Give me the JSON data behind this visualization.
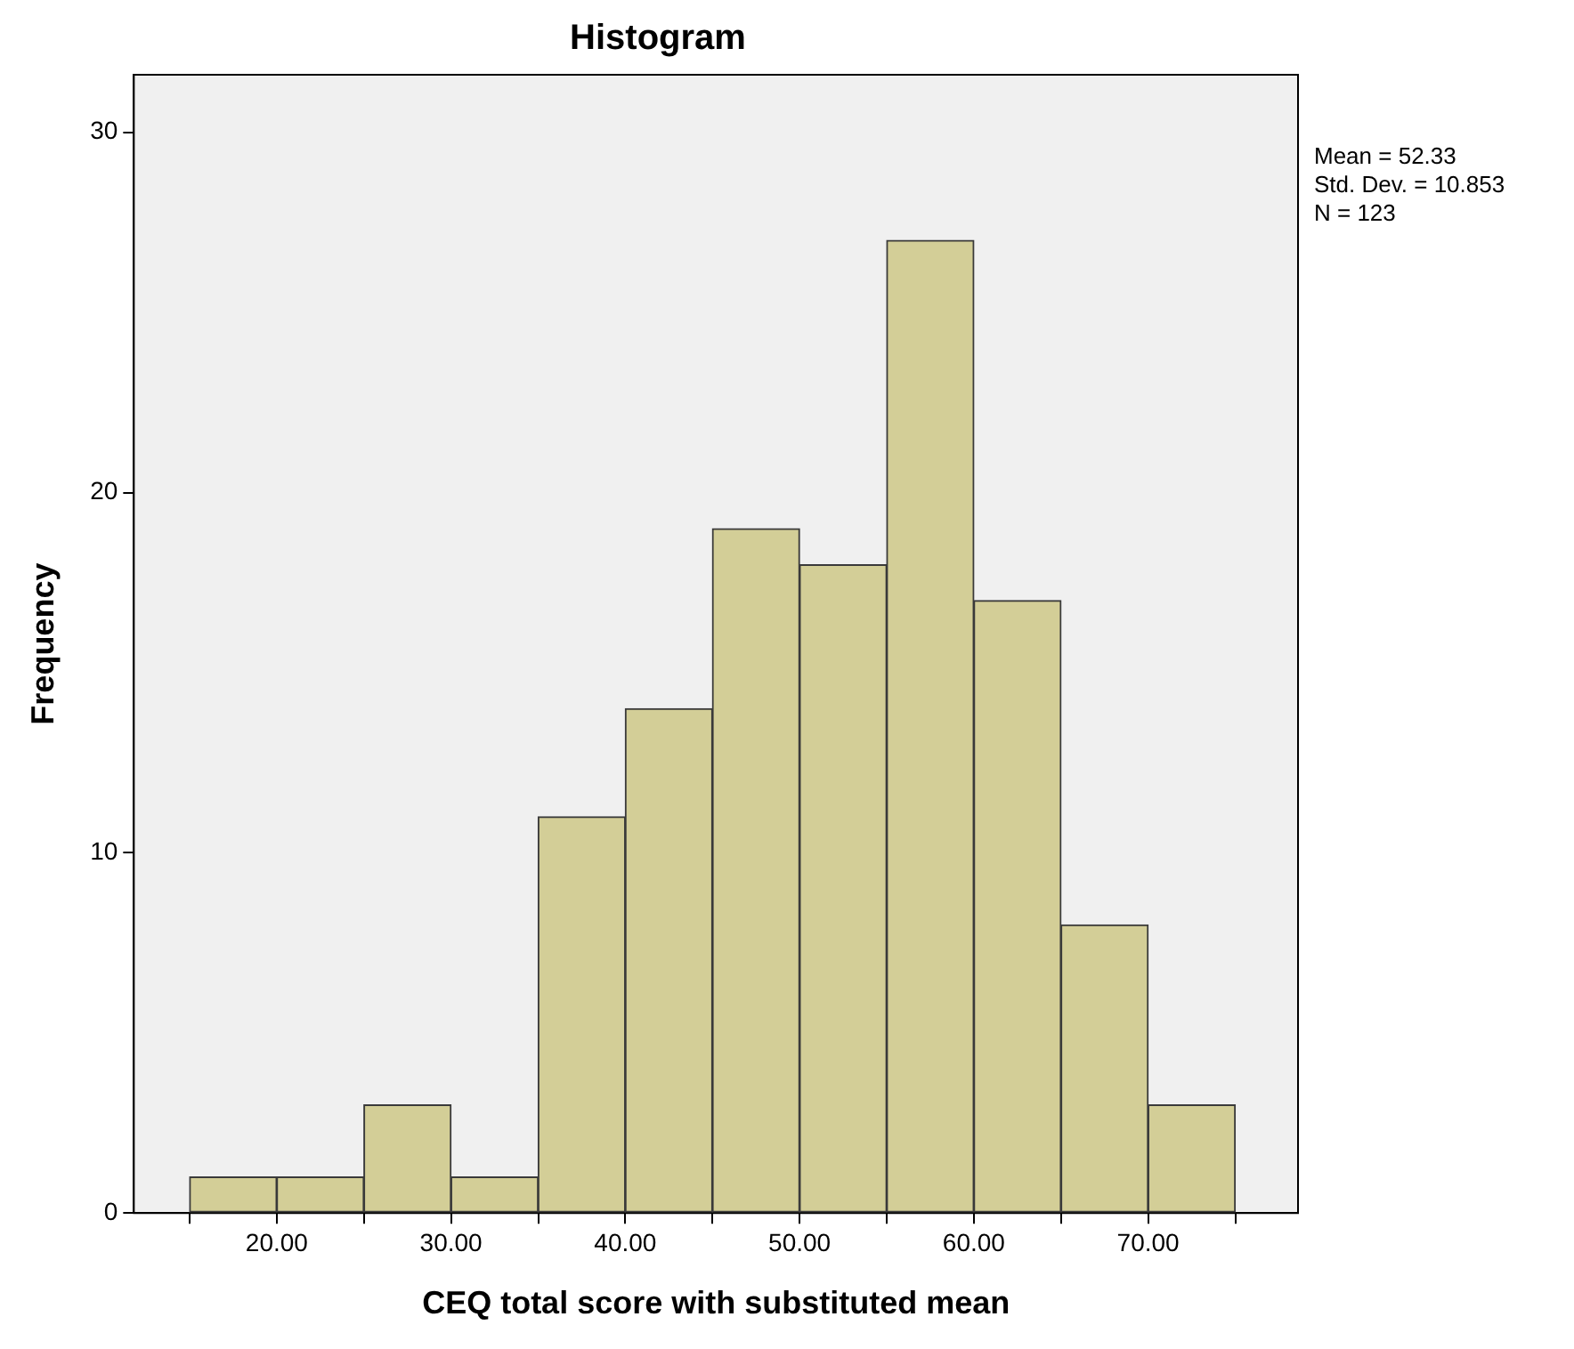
{
  "chart_data": {
    "type": "histogram",
    "title": "Histogram",
    "xlabel": "CEQ total score with substituted mean",
    "ylabel": "Frequency",
    "bins": [
      15,
      20,
      25,
      30,
      35,
      40,
      45,
      50,
      55,
      60,
      65,
      70,
      75
    ],
    "values": [
      1,
      1,
      3,
      1,
      11,
      14,
      19,
      18,
      27,
      17,
      8,
      3
    ],
    "color": "#d3ce97",
    "xlim": [
      11.8,
      78.6
    ],
    "xticks": [
      {
        "value": 15,
        "label": null
      },
      {
        "value": 20,
        "label": "20.00"
      },
      {
        "value": 25,
        "label": null
      },
      {
        "value": 30,
        "label": "30.00"
      },
      {
        "value": 35,
        "label": null
      },
      {
        "value": 40,
        "label": "40.00"
      },
      {
        "value": 45,
        "label": null
      },
      {
        "value": 50,
        "label": "50.00"
      },
      {
        "value": 55,
        "label": null
      },
      {
        "value": 60,
        "label": "60.00"
      },
      {
        "value": 65,
        "label": null
      },
      {
        "value": 70,
        "label": "70.00"
      },
      {
        "value": 75,
        "label": null
      }
    ],
    "ylim": [
      0,
      31.6
    ],
    "yticks": [
      0,
      10,
      20,
      30
    ],
    "grid": false,
    "legend": false,
    "annotations": [
      "Mean = 52.33",
      "Std. Dev. = 10.853",
      "N = 123"
    ]
  }
}
